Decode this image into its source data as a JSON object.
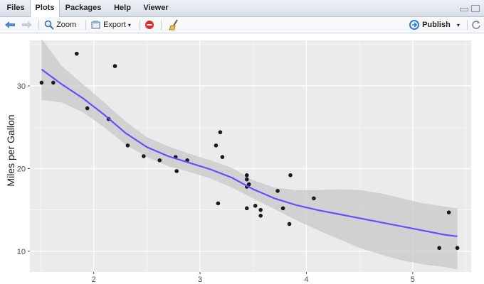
{
  "tabs": [
    {
      "label": "Files",
      "active": false
    },
    {
      "label": "Plots",
      "active": true
    },
    {
      "label": "Packages",
      "active": false
    },
    {
      "label": "Help",
      "active": false
    },
    {
      "label": "Viewer",
      "active": false
    }
  ],
  "toolbar": {
    "zoom_label": "Zoom",
    "export_label": "Export",
    "publish_label": "Publish",
    "icons": [
      "back-arrow-icon",
      "forward-arrow-icon",
      "zoom-icon",
      "export-icon",
      "remove-plot-icon",
      "clear-all-icon",
      "publish-icon",
      "refresh-icon"
    ]
  },
  "colors": {
    "panel_bg": "#ebebeb",
    "grid": "#ffffff",
    "ribbon": "#c8c8c8",
    "line": "#6a4bff",
    "point": "#1a1a1a"
  },
  "chart_data": {
    "type": "scatter",
    "title": "",
    "xlabel": "",
    "ylabel": "Miles per Gallon",
    "xlim": [
      1.4,
      5.55
    ],
    "ylim": [
      7.5,
      35.5
    ],
    "x_ticks": [
      2,
      3,
      4,
      5
    ],
    "y_ticks": [
      10,
      20,
      30
    ],
    "grid": true,
    "points": [
      [
        1.51,
        30.4
      ],
      [
        1.62,
        30.4
      ],
      [
        1.84,
        33.9
      ],
      [
        1.94,
        27.3
      ],
      [
        2.14,
        26.0
      ],
      [
        2.2,
        32.4
      ],
      [
        2.32,
        22.8
      ],
      [
        2.47,
        21.5
      ],
      [
        2.62,
        21.0
      ],
      [
        2.77,
        21.4
      ],
      [
        2.78,
        19.7
      ],
      [
        2.88,
        21.0
      ],
      [
        3.15,
        22.8
      ],
      [
        3.17,
        15.8
      ],
      [
        3.19,
        24.4
      ],
      [
        3.21,
        21.4
      ],
      [
        3.44,
        18.7
      ],
      [
        3.44,
        19.2
      ],
      [
        3.44,
        17.8
      ],
      [
        3.46,
        18.1
      ],
      [
        3.44,
        15.2
      ],
      [
        3.52,
        15.5
      ],
      [
        3.57,
        15.0
      ],
      [
        3.57,
        14.3
      ],
      [
        3.73,
        17.3
      ],
      [
        3.78,
        15.2
      ],
      [
        3.84,
        13.3
      ],
      [
        3.85,
        19.2
      ],
      [
        4.07,
        16.4
      ],
      [
        5.25,
        10.4
      ],
      [
        5.34,
        14.7
      ],
      [
        5.42,
        10.4
      ]
    ],
    "smooth": {
      "x": [
        1.51,
        1.7,
        1.9,
        2.1,
        2.3,
        2.5,
        2.7,
        2.9,
        3.1,
        3.3,
        3.5,
        3.7,
        3.9,
        4.1,
        4.3,
        4.5,
        4.7,
        4.9,
        5.1,
        5.3,
        5.42
      ],
      "y": [
        32.0,
        30.2,
        28.5,
        26.5,
        24.3,
        22.6,
        21.5,
        20.7,
        19.9,
        18.9,
        17.5,
        16.4,
        15.6,
        15.0,
        14.5,
        14.0,
        13.5,
        13.0,
        12.5,
        12.0,
        11.8
      ],
      "lower": [
        28.3,
        28.0,
        26.8,
        25.0,
        22.9,
        21.4,
        20.3,
        19.6,
        18.8,
        17.7,
        16.4,
        15.1,
        13.8,
        12.6,
        11.5,
        10.4,
        9.6,
        8.9,
        8.4,
        8.1,
        7.8
      ],
      "upper": [
        35.7,
        32.4,
        30.2,
        28.0,
        25.7,
        23.8,
        22.7,
        21.8,
        21.0,
        20.1,
        18.6,
        17.7,
        17.4,
        17.4,
        17.5,
        17.4,
        17.0,
        16.4,
        15.8,
        15.4,
        15.2
      ]
    }
  }
}
